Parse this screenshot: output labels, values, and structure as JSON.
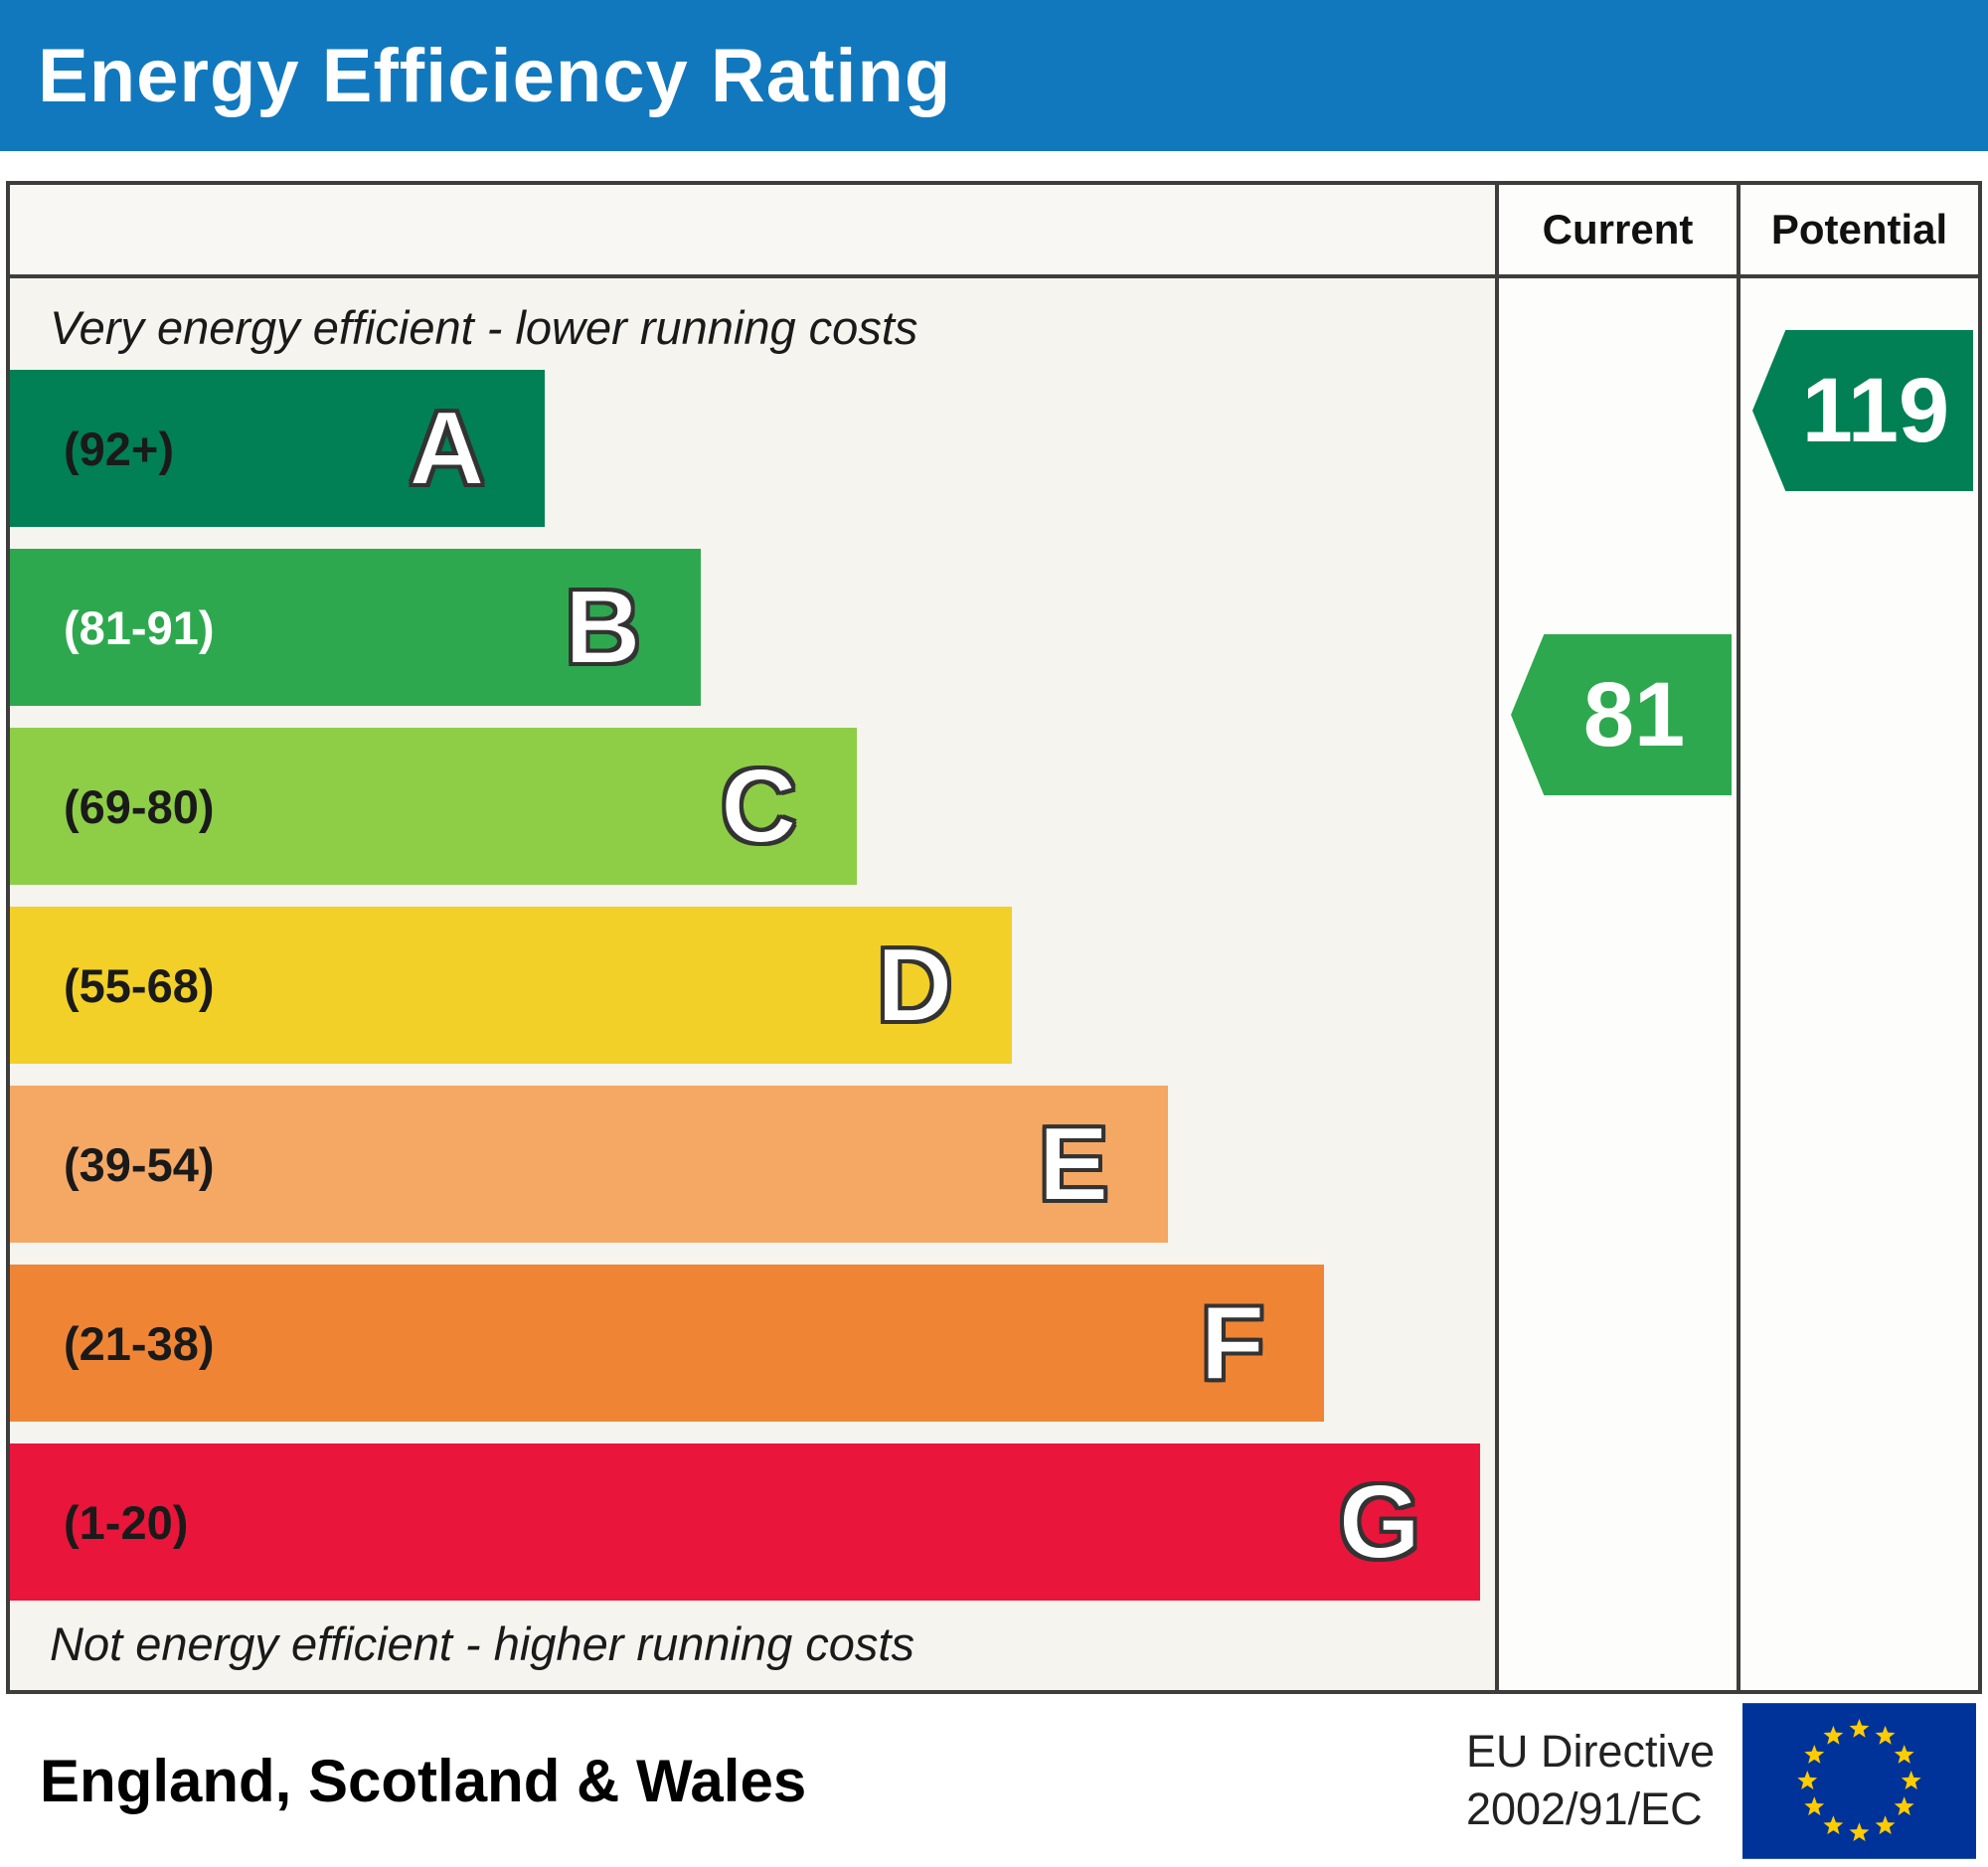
{
  "header": {
    "title": "Energy Efficiency Rating",
    "bg_color": "#1278be"
  },
  "columns": {
    "current": "Current",
    "potential": "Potential"
  },
  "captions": {
    "top": "Very energy efficient - lower running costs",
    "bottom": "Not energy efficient - higher running costs"
  },
  "ratings": {
    "current": {
      "label": "Current",
      "value": "81",
      "band": "B",
      "color": "#2ea84e"
    },
    "potential": {
      "label": "Potential",
      "value": "119",
      "band": "A",
      "color": "#008054"
    }
  },
  "footer": {
    "region": "England, Scotland & Wales",
    "directive": [
      "EU Directive",
      "2002/91/EC"
    ],
    "flag_icon": "eu-flag",
    "flag_bg": "#003399",
    "flag_star_color": "#ffcc00"
  },
  "chart_data": {
    "type": "bar",
    "title": "Energy Efficiency Rating",
    "categories": [
      "A",
      "B",
      "C",
      "D",
      "E",
      "F",
      "G"
    ],
    "current": 81,
    "potential": 119,
    "bands": [
      {
        "letter": "A",
        "range": "(92+)",
        "score_min": 92,
        "color": "#008054",
        "label_color": "#1a1a1a",
        "width_pct": 36
      },
      {
        "letter": "B",
        "range": "(81-91)",
        "score_min": 81,
        "score_max": 91,
        "color": "#2ea84e",
        "label_color": "#ffffff",
        "width_pct": 46.5
      },
      {
        "letter": "C",
        "range": "(69-80)",
        "score_min": 69,
        "score_max": 80,
        "color": "#8dce46",
        "label_color": "#1a1a1a",
        "width_pct": 57
      },
      {
        "letter": "D",
        "range": "(55-68)",
        "score_min": 55,
        "score_max": 68,
        "color": "#f2d027",
        "label_color": "#1a1a1a",
        "width_pct": 67.5
      },
      {
        "letter": "E",
        "range": "(39-54)",
        "score_min": 39,
        "score_max": 54,
        "color": "#f5a864",
        "label_color": "#1a1a1a",
        "width_pct": 78
      },
      {
        "letter": "F",
        "range": "(21-38)",
        "score_min": 21,
        "score_max": 38,
        "color": "#ef8534",
        "label_color": "#1a1a1a",
        "width_pct": 88.5
      },
      {
        "letter": "G",
        "range": "(1-20)",
        "score_min": 1,
        "score_max": 20,
        "color": "#e9153b",
        "label_color": "#1a1a1a",
        "width_pct": 99
      }
    ]
  }
}
